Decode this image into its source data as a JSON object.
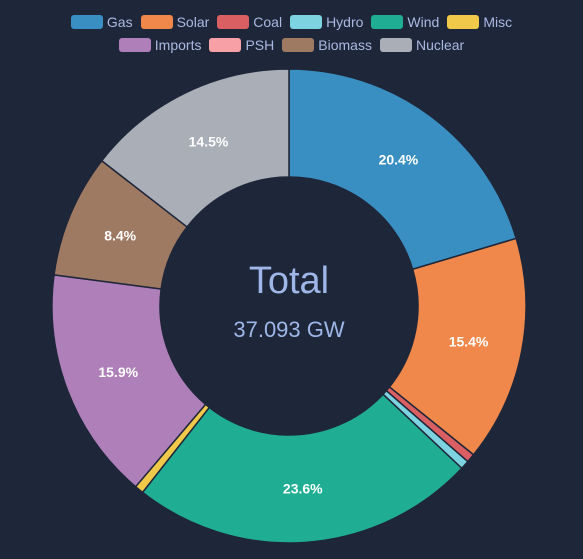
{
  "chart_data": {
    "type": "pie",
    "categories": [
      "Gas",
      "Solar",
      "Coal",
      "Hydro",
      "Wind",
      "Misc",
      "Imports",
      "PSH",
      "Biomass",
      "Nuclear"
    ],
    "values": [
      20.4,
      15.4,
      0.6,
      0.6,
      23.6,
      0.6,
      15.9,
      0.0,
      8.4,
      14.5
    ],
    "value_unit": "%",
    "slice_labels": [
      "20.4%",
      "15.4%",
      "",
      "",
      "23.6%",
      "",
      "15.9%",
      "",
      "8.4%",
      "14.5%"
    ],
    "colors": [
      "#3a8fc2",
      "#ef884a",
      "#d95f63",
      "#7dd3e0",
      "#1fae93",
      "#f0c94b",
      "#ae7fb8",
      "#f7a1a6",
      "#9f7a63",
      "#a9aeb7"
    ],
    "legend_rows": [
      [
        "Gas",
        "Solar",
        "Coal",
        "Hydro",
        "Wind",
        "Misc"
      ],
      [
        "Imports",
        "PSH",
        "Biomass",
        "Nuclear"
      ]
    ],
    "legend_placement": "top",
    "donut": true,
    "center_title": "Total",
    "center_value": "37.093 GW",
    "title": "",
    "background": "#1e2639",
    "slice_border_color": "#1e2639",
    "text_color": "#aab9e2"
  }
}
